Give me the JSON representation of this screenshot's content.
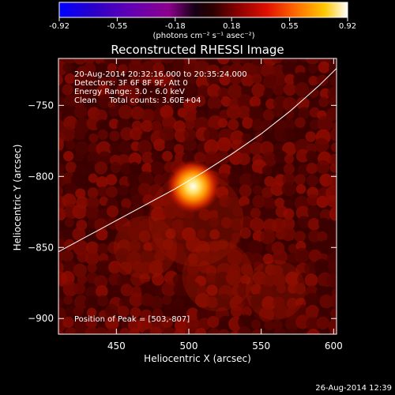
{
  "colorbar": {
    "ticks": [
      "-0.92",
      "-0.55",
      "-0.18",
      "0.18",
      "0.55",
      "0.92"
    ],
    "tick_values": [
      -0.92,
      -0.55,
      -0.18,
      0.18,
      0.55,
      0.92
    ],
    "unit_label": "(photons cm⁻² s⁻¹ asec⁻²)"
  },
  "title": "Reconstructed RHESSI Image",
  "annotations": {
    "time_range": "20-Aug-2014 20:32:16.000 to 20:35:24.000",
    "detectors": "Detectors: 3F 6F 8F 9F, Att 0",
    "energy_range": "Energy Range: 3.0 - 6.0 keV",
    "clean_counts": "Clean     Total counts: 3.60E+04",
    "peak_position": "Position of Peak = [503,-807]"
  },
  "footer_timestamp": "26-Aug-2014 12:39",
  "colors": {
    "background": "#000000",
    "axes": "#ffffff",
    "limb_line": "#ffffff",
    "colormap": [
      "#0000ff",
      "#2a00c8",
      "#6400b4",
      "#8c008c",
      "#000000",
      "#500000",
      "#aa0000",
      "#ff3000",
      "#ff8c00",
      "#ffd200",
      "#ffffff"
    ]
  },
  "chart_data": {
    "type": "heatmap",
    "title": "Reconstructed RHESSI Image",
    "xlabel": "Heliocentric X (arcsec)",
    "ylabel": "Heliocentric Y (arcsec)",
    "xlim": [
      410,
      602
    ],
    "ylim": [
      -911,
      -717
    ],
    "x_ticks": [
      450,
      500,
      550,
      600
    ],
    "y_ticks": [
      -750,
      -800,
      -850,
      -900
    ],
    "x_tick_labels": [
      "450",
      "500",
      "550",
      "600"
    ],
    "y_tick_labels": [
      "−750",
      "−800",
      "−850",
      "−900"
    ],
    "value_range": [
      -0.92,
      0.92
    ],
    "peak": {
      "x": 503,
      "y": -807,
      "value": 0.92
    },
    "limb_curve": {
      "x": [
        410,
        430,
        450,
        470,
        490,
        510,
        530,
        550,
        570,
        590,
        602
      ],
      "y": [
        -853,
        -842,
        -831,
        -820,
        -809,
        -797,
        -784,
        -770,
        -754,
        -736,
        -724
      ]
    }
  }
}
